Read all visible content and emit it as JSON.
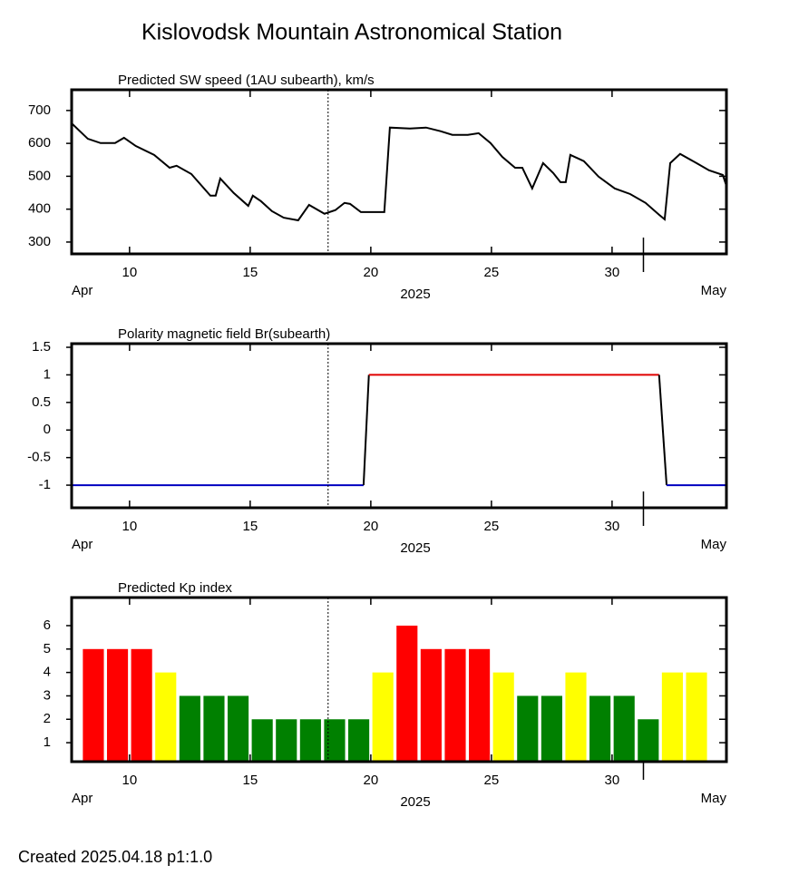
{
  "title": "Kislovodsk Mountain Astronomical Station",
  "footer": "Created  2025.04.18    p1:1.0",
  "chart_data": [
    {
      "type": "line",
      "title": "Predicted SW speed (1AU subearth), km/s",
      "x": [
        7.6,
        8.27,
        8.8,
        9.4,
        9.77,
        10.26,
        11.02,
        11.66,
        11.95,
        12.56,
        13.35,
        13.57,
        13.76,
        14.32,
        14.92,
        15.11,
        15.45,
        15.9,
        16.39,
        16.99,
        17.44,
        18.08,
        18.53,
        18.91,
        19.14,
        19.59,
        20.56,
        20.79,
        21.62,
        22.29,
        22.89,
        23.38,
        24.02,
        24.47,
        24.96,
        25.45,
        25.98,
        26.28,
        26.69,
        27.14,
        27.56,
        27.86,
        28.08,
        28.27,
        28.83,
        29.44,
        30.11,
        30.75,
        31.39,
        31.95,
        32.18,
        32.41,
        32.82,
        33.5,
        34.02,
        34.59,
        34.74
      ],
      "values": [
        661,
        614,
        601,
        601,
        617,
        592,
        565,
        526,
        532,
        507,
        441,
        441,
        493,
        449,
        410,
        441,
        424,
        394,
        374,
        366,
        413,
        386,
        397,
        419,
        416,
        391,
        391,
        648,
        645,
        648,
        637,
        626,
        626,
        631,
        601,
        559,
        526,
        526,
        463,
        540,
        510,
        482,
        482,
        565,
        546,
        499,
        463,
        446,
        419,
        383,
        369,
        540,
        568,
        540,
        518,
        504,
        471
      ],
      "color": "#000000",
      "xlim": [
        7.6,
        34.74
      ],
      "xticks": [
        10,
        15,
        20,
        25,
        30
      ],
      "ylim": [
        264,
        763
      ],
      "yticks": [
        300,
        400,
        500,
        600,
        700
      ],
      "month_start": "Apr",
      "year": "2025",
      "month_end": "May",
      "month_boundary": 31.3,
      "current_date_x": 18.23
    },
    {
      "type": "step",
      "title": "Polarity magnetic field  Br(subearth)",
      "x": [
        7.6,
        19.7,
        19.92,
        31.95,
        32.26,
        34.74
      ],
      "values": [
        -1,
        -1,
        1,
        1,
        -1,
        -1
      ],
      "segment_colors": [
        "#0000c0",
        "#000000",
        "#e00000",
        "#000000",
        "#0000c0"
      ],
      "xlim": [
        7.6,
        34.74
      ],
      "xticks": [
        10,
        15,
        20,
        25,
        30
      ],
      "ylim": [
        -1.41,
        1.566
      ],
      "yticks": [
        1.5,
        1,
        0.5,
        0,
        -0.5,
        -1
      ],
      "month_start": "Apr",
      "year": "2025",
      "month_end": "May",
      "month_boundary": 31.3,
      "current_date_x": 18.23
    },
    {
      "type": "bar",
      "title": "Predicted Kp index",
      "x": [
        8.5,
        9.5,
        10.5,
        11.5,
        12.5,
        13.5,
        14.5,
        15.5,
        16.5,
        17.5,
        18.5,
        19.5,
        20.5,
        21.5,
        22.5,
        23.5,
        24.5,
        25.5,
        26.5,
        27.5,
        28.5,
        29.5,
        30.5,
        31.5,
        32.5,
        33.5
      ],
      "values": [
        5,
        5,
        5,
        4,
        3,
        3,
        3,
        2,
        2,
        2,
        2,
        2,
        4,
        6,
        5,
        5,
        5,
        4,
        3,
        3,
        4,
        3,
        3,
        2,
        4,
        4
      ],
      "colors": [
        "#ff0000",
        "#ff0000",
        "#ff0000",
        "#ffff00",
        "#008000",
        "#008000",
        "#008000",
        "#008000",
        "#008000",
        "#008000",
        "#008000",
        "#008000",
        "#ffff00",
        "#ff0000",
        "#ff0000",
        "#ff0000",
        "#ff0000",
        "#ffff00",
        "#008000",
        "#008000",
        "#ffff00",
        "#008000",
        "#008000",
        "#008000",
        "#ffff00",
        "#ffff00"
      ],
      "bar_width": 0.87,
      "xlim": [
        7.6,
        34.74
      ],
      "xticks": [
        10,
        15,
        20,
        25,
        30
      ],
      "ylim": [
        0.19,
        7.2
      ],
      "yticks": [
        1,
        2,
        3,
        4,
        5,
        6
      ],
      "month_start": "Apr",
      "year": "2025",
      "month_end": "May",
      "month_boundary": 31.3,
      "current_date_x": 18.23
    }
  ]
}
